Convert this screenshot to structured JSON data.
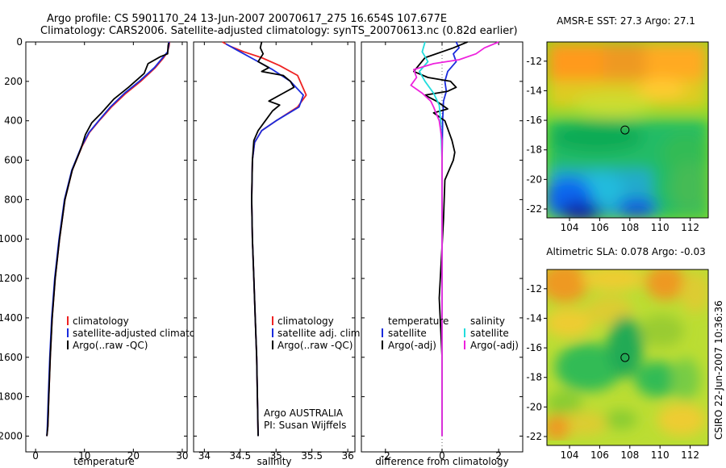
{
  "header": {
    "line1": "Argo profile: CS 5901170_24 13-Jun-2007 20070617_275 16.654S 107.677E",
    "line2": "Climatology: CARS2006. Satellite-adjusted climatology: synTS_20070613.nc (0.82d earlier)"
  },
  "footer": {
    "stamp": "CSIRO 22-Jun-2007 10:36:36"
  },
  "colors": {
    "climatology": "#ee2222",
    "satellite": "#1a2bdd",
    "argo": "#000000",
    "cyan": "#22dddd",
    "magenta": "#ee22dd"
  },
  "chart_data": [
    {
      "type": "line",
      "id": "temperature",
      "xlabel": "temperature",
      "ylabel": "",
      "xlim": [
        -2,
        31
      ],
      "ylim": [
        2080,
        0
      ],
      "xticks": [
        0,
        10,
        20,
        30
      ],
      "xtick_labels": [
        "0",
        "10",
        "20",
        "30"
      ],
      "yticks": [
        0,
        200,
        400,
        600,
        800,
        1000,
        1200,
        1400,
        1600,
        1800,
        2000
      ],
      "ytick_labels": [
        "0",
        "200",
        "400",
        "600",
        "800",
        "1000",
        "1200",
        "1400",
        "1600",
        "1800",
        "2000"
      ],
      "legend": [
        "climatology",
        "satellite-adjusted climatology",
        "Argo(..raw -QC)"
      ],
      "series": [
        {
          "name": "climatology",
          "color": "climatology",
          "x": [
            27.4,
            27.3,
            27.0,
            26.2,
            24.5,
            21.5,
            18.5,
            15.5,
            13.0,
            11.0,
            9.5,
            7.5,
            6.0,
            4.9,
            4.0,
            3.4,
            3.0,
            2.7,
            2.5,
            2.3
          ],
          "y": [
            0,
            20,
            50,
            80,
            130,
            200,
            260,
            330,
            400,
            460,
            530,
            650,
            800,
            1000,
            1200,
            1400,
            1600,
            1800,
            1950,
            2000
          ]
        },
        {
          "name": "satellite-adjusted climatology",
          "color": "satellite",
          "x": [
            27.3,
            27.2,
            27.0,
            26.0,
            24.3,
            21.2,
            18.2,
            15.3,
            12.9,
            10.9,
            9.4,
            7.4,
            5.9,
            4.8,
            3.9,
            3.3,
            2.9,
            2.6,
            2.4,
            2.3
          ],
          "y": [
            0,
            20,
            50,
            80,
            130,
            200,
            260,
            330,
            400,
            460,
            530,
            650,
            800,
            1000,
            1200,
            1400,
            1600,
            1800,
            1950,
            2000
          ]
        },
        {
          "name": "Argo(..raw -QC)",
          "color": "argo",
          "x": [
            27.2,
            27.1,
            27.0,
            25.5,
            23.0,
            22.2,
            19.0,
            16.0,
            13.5,
            11.5,
            10.2,
            9.3,
            7.5,
            6.0,
            4.9,
            4.0,
            3.4,
            3.0,
            2.7,
            2.5,
            2.3
          ],
          "y": [
            5,
            20,
            60,
            75,
            110,
            160,
            230,
            290,
            360,
            410,
            470,
            540,
            650,
            800,
            1000,
            1200,
            1400,
            1600,
            1800,
            1950,
            2000
          ]
        }
      ]
    },
    {
      "type": "line",
      "id": "salinity",
      "xlabel": "salinity",
      "ylabel": "",
      "xlim": [
        33.85,
        36.1
      ],
      "ylim": [
        2080,
        0
      ],
      "xticks": [
        34,
        34.5,
        35,
        35.5,
        36
      ],
      "xtick_labels": [
        "34",
        "34.5",
        "35",
        "35.5",
        "36"
      ],
      "legend": [
        "climatology",
        "satellite adj. clim.",
        "Argo(..raw -QC)"
      ],
      "annotations": [
        "Argo AUSTRALIA",
        "PI: Susan Wijffels"
      ],
      "series": [
        {
          "name": "climatology",
          "color": "climatology",
          "x": [
            34.25,
            34.35,
            34.55,
            34.8,
            35.05,
            35.3,
            35.42,
            35.3,
            35.0,
            34.8,
            34.7,
            34.67,
            34.66,
            34.67,
            34.69,
            34.71,
            34.73,
            34.74,
            34.75
          ],
          "y": [
            0,
            20,
            50,
            80,
            120,
            170,
            270,
            330,
            400,
            450,
            510,
            600,
            800,
            1000,
            1200,
            1400,
            1600,
            1800,
            2000
          ]
        },
        {
          "name": "satellite adj. clim.",
          "color": "satellite",
          "x": [
            34.3,
            34.45,
            34.7,
            34.95,
            35.2,
            35.38,
            35.32,
            35.0,
            34.8,
            34.7,
            34.67,
            34.66,
            34.67,
            34.69,
            34.71,
            34.73,
            34.74,
            34.75
          ],
          "y": [
            10,
            40,
            90,
            140,
            200,
            270,
            330,
            400,
            450,
            510,
            600,
            800,
            1000,
            1200,
            1400,
            1600,
            1800,
            2000
          ]
        },
        {
          "name": "Argo(..raw -QC)",
          "color": "argo",
          "x": [
            34.8,
            34.78,
            34.82,
            34.75,
            34.9,
            34.8,
            35.1,
            35.2,
            35.25,
            35.1,
            34.9,
            35.05,
            34.95,
            34.85,
            34.75,
            34.69,
            34.67,
            34.66,
            34.67,
            34.69,
            34.71,
            34.73,
            34.74,
            34.75
          ],
          "y": [
            0,
            30,
            60,
            100,
            130,
            150,
            170,
            200,
            230,
            260,
            300,
            320,
            350,
            400,
            450,
            500,
            600,
            800,
            1000,
            1200,
            1400,
            1600,
            1800,
            2000
          ]
        }
      ]
    },
    {
      "type": "line",
      "id": "difference",
      "xlabel": "difference from climatology",
      "ylabel": "",
      "xlim": [
        -2.85,
        2.85
      ],
      "ylim": [
        2080,
        0
      ],
      "xticks": [
        -2,
        0,
        2
      ],
      "xtick_labels": [
        "-2",
        "0",
        "2"
      ],
      "legend_left": [
        "temperature",
        "satellite",
        "Argo(-adj)"
      ],
      "legend_right": [
        "salinity",
        "satellite",
        "Argo(-adj)"
      ],
      "series": [
        {
          "name": "satellite",
          "color": "satellite",
          "x": [
            0.5,
            0.6,
            0.4,
            0.5,
            0.2,
            0.1,
            0.15,
            0.05,
            0.02,
            0.0,
            0.0,
            0.0,
            0.0
          ],
          "y": [
            0,
            30,
            60,
            100,
            150,
            200,
            250,
            300,
            400,
            600,
            1000,
            1500,
            2000
          ]
        },
        {
          "name": "Argo(-adj)",
          "color": "argo",
          "x": [
            0.9,
            0.4,
            -0.6,
            -1.0,
            -0.5,
            0.3,
            0.5,
            0.2,
            -0.6,
            -0.2,
            0.2,
            -0.3,
            0.1,
            0.35,
            0.45,
            0.4,
            0.1,
            0.05,
            -0.1,
            0.0,
            0.0
          ],
          "y": [
            0,
            30,
            80,
            150,
            180,
            200,
            230,
            250,
            270,
            300,
            340,
            360,
            400,
            500,
            560,
            600,
            700,
            900,
            1300,
            1600,
            2000
          ]
        },
        {
          "name": "salinity satellite",
          "color": "cyan",
          "x": [
            -0.6,
            -0.7,
            -0.5,
            -0.8,
            -0.6,
            -0.3,
            -0.1,
            -0.05,
            0.0,
            0.0,
            0.0,
            0.0
          ],
          "y": [
            0,
            50,
            100,
            150,
            200,
            260,
            320,
            400,
            600,
            1000,
            1500,
            2000
          ]
        },
        {
          "name": "salinity Argo(-adj)",
          "color": "magenta",
          "x": [
            2.0,
            1.5,
            1.2,
            0.6,
            -0.3,
            -1.0,
            -0.9,
            -1.1,
            -0.7,
            -0.4,
            -0.3,
            -0.1,
            0.0,
            0.0,
            0.0
          ],
          "y": [
            0,
            30,
            60,
            90,
            110,
            140,
            180,
            220,
            260,
            300,
            330,
            400,
            500,
            1000,
            2000
          ]
        }
      ]
    },
    {
      "type": "heatmap",
      "id": "sst-map",
      "title": "AMSR-E SST: 27.3 Argo: 27.1",
      "xlim": [
        102.5,
        113.2
      ],
      "ylim": [
        -22.6,
        -10.7
      ],
      "xticks": [
        104,
        106,
        108,
        110,
        112
      ],
      "xtick_labels": [
        "104",
        "106",
        "108",
        "110",
        "112"
      ],
      "yticks": [
        -12,
        -14,
        -16,
        -18,
        -20,
        -22
      ],
      "ytick_labels": [
        "-12",
        "-14",
        "-16",
        "-18",
        "-20",
        "-22"
      ],
      "marker": {
        "lon": 107.677,
        "lat": -16.654
      }
    },
    {
      "type": "heatmap",
      "id": "sla-map",
      "title": "Altimetric SLA: 0.078 Argo: -0.03",
      "xlim": [
        102.5,
        113.2
      ],
      "ylim": [
        -22.6,
        -10.7
      ],
      "xticks": [
        104,
        106,
        108,
        110,
        112
      ],
      "xtick_labels": [
        "104",
        "106",
        "108",
        "110",
        "112"
      ],
      "yticks": [
        -12,
        -14,
        -16,
        -18,
        -20,
        -22
      ],
      "ytick_labels": [
        "-12",
        "-14",
        "-16",
        "-18",
        "-20",
        "-22"
      ],
      "marker": {
        "lon": 107.677,
        "lat": -16.654
      }
    }
  ]
}
